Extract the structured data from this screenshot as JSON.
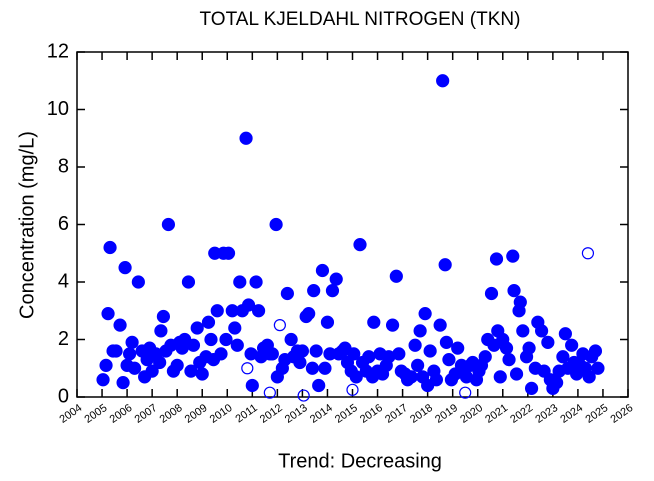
{
  "chart_data": {
    "type": "scatter",
    "title": "TOTAL KJELDAHL NITROGEN (TKN)",
    "y_label": "Concentration (mg/L)",
    "x_label": "Trend: Decreasing",
    "xlim": [
      2004,
      2026
    ],
    "xticks": [
      2004,
      2005,
      2006,
      2007,
      2008,
      2009,
      2010,
      2011,
      2012,
      2013,
      2014,
      2015,
      2016,
      2017,
      2018,
      2019,
      2020,
      2021,
      2022,
      2023,
      2024,
      2025,
      2026
    ],
    "ylim": [
      0,
      12
    ],
    "yticks": [
      0,
      2,
      4,
      6,
      8,
      10,
      12
    ],
    "grid": false,
    "series": [
      {
        "color": "#0000ff",
        "marker": "filled",
        "x": [
          2005.04,
          2005.16,
          2005.24,
          2005.32,
          2005.44,
          2005.56,
          2005.72,
          2005.84,
          2005.92,
          2006.0,
          2006.1,
          2006.2,
          2006.3,
          2006.45,
          2006.6,
          2006.7,
          2006.8,
          2006.9,
          2007.0,
          2007.15,
          2007.3,
          2007.35,
          2007.45,
          2007.55,
          2007.65,
          2007.75,
          2007.85,
          2008.0,
          2008.1,
          2008.2,
          2008.3,
          2008.45,
          2008.55,
          2008.65,
          2008.8,
          2008.9,
          2009.0,
          2009.15,
          2009.25,
          2009.35,
          2009.45,
          2009.5,
          2009.6,
          2009.75,
          2009.85,
          2009.95,
          2010.05,
          2010.2,
          2010.3,
          2010.4,
          2010.5,
          2010.6,
          2010.75,
          2010.85,
          2010.95,
          2011.0,
          2011.15,
          2011.25,
          2011.35,
          2011.45,
          2011.6,
          2011.7,
          2011.8,
          2011.95,
          2012.0,
          2012.2,
          2012.3,
          2012.4,
          2012.55,
          2012.65,
          2012.8,
          2012.9,
          2013.0,
          2013.15,
          2013.25,
          2013.4,
          2013.45,
          2013.55,
          2013.65,
          2013.8,
          2013.9,
          2014.0,
          2014.1,
          2014.2,
          2014.35,
          2014.45,
          2014.6,
          2014.7,
          2014.8,
          2014.95,
          2015.05,
          2015.15,
          2015.3,
          2015.4,
          2015.55,
          2015.65,
          2015.8,
          2015.85,
          2016.0,
          2016.1,
          2016.2,
          2016.35,
          2016.45,
          2016.6,
          2016.75,
          2016.85,
          2016.95,
          2017.1,
          2017.2,
          2017.35,
          2017.5,
          2017.6,
          2017.7,
          2017.8,
          2017.9,
          2018.0,
          2018.1,
          2018.25,
          2018.35,
          2018.5,
          2018.6,
          2018.7,
          2018.75,
          2018.85,
          2018.95,
          2019.1,
          2019.2,
          2019.35,
          2019.45,
          2019.55,
          2019.7,
          2019.8,
          2019.95,
          2020.05,
          2020.15,
          2020.3,
          2020.4,
          2020.55,
          2020.65,
          2020.75,
          2020.8,
          2020.9,
          2021.0,
          2021.15,
          2021.25,
          2021.4,
          2021.45,
          2021.55,
          2021.65,
          2021.7,
          2021.8,
          2021.95,
          2022.05,
          2022.15,
          2022.3,
          2022.4,
          2022.55,
          2022.65,
          2022.8,
          2022.9,
          2023.0,
          2023.15,
          2023.25,
          2023.4,
          2023.5,
          2023.6,
          2023.75,
          2023.85,
          2023.95,
          2024.1,
          2024.2,
          2024.3,
          2024.45,
          2024.55,
          2024.7,
          2024.8
        ],
        "values": [
          0.6,
          1.1,
          2.9,
          5.2,
          1.6,
          1.6,
          2.5,
          0.5,
          4.5,
          1.1,
          1.5,
          1.9,
          1.0,
          4.0,
          1.6,
          0.7,
          1.3,
          1.7,
          0.9,
          1.5,
          1.2,
          2.3,
          2.8,
          1.6,
          6.0,
          1.8,
          0.9,
          1.1,
          1.9,
          1.7,
          2.0,
          4.0,
          0.9,
          1.8,
          2.4,
          1.2,
          0.8,
          1.4,
          2.6,
          2.0,
          1.3,
          5.0,
          3.0,
          1.5,
          5.0,
          2.0,
          5.0,
          3.0,
          2.4,
          1.8,
          4.0,
          3.0,
          9.0,
          3.2,
          1.5,
          0.4,
          4.0,
          3.0,
          1.4,
          1.7,
          1.8,
          1.5,
          1.5,
          6.0,
          0.7,
          1.0,
          1.3,
          3.6,
          2.0,
          1.4,
          1.6,
          1.2,
          1.6,
          2.8,
          2.9,
          1.0,
          3.7,
          1.6,
          0.4,
          4.4,
          1.0,
          2.6,
          1.5,
          3.7,
          4.1,
          1.5,
          1.6,
          1.7,
          1.2,
          0.9,
          1.5,
          0.7,
          5.3,
          1.2,
          0.9,
          1.4,
          0.7,
          2.6,
          0.9,
          1.5,
          0.8,
          1.1,
          1.4,
          2.5,
          4.2,
          1.5,
          0.9,
          0.8,
          0.6,
          0.7,
          1.8,
          1.1,
          2.3,
          0.7,
          2.9,
          0.4,
          1.6,
          0.9,
          0.6,
          2.5,
          11.0,
          4.6,
          1.9,
          1.3,
          0.6,
          0.8,
          1.7,
          1.1,
          0.9,
          0.7,
          1.1,
          1.2,
          0.6,
          0.9,
          1.1,
          1.4,
          2.0,
          3.6,
          1.8,
          4.8,
          2.3,
          0.7,
          2.0,
          1.7,
          1.3,
          4.9,
          3.7,
          0.8,
          3.0,
          3.3,
          2.3,
          1.4,
          1.7,
          0.3,
          1.0,
          2.6,
          2.3,
          0.9,
          1.9,
          0.6,
          0.3,
          0.5,
          0.9,
          1.4,
          2.2,
          1.0,
          1.8,
          1.2,
          0.8,
          1.1,
          1.5,
          1.0,
          0.7,
          1.4,
          1.6,
          1.0
        ]
      },
      {
        "color": "#0000ff",
        "marker": "open",
        "x": [
          2010.8,
          2011.7,
          2012.1,
          2013.05,
          2015.0,
          2019.5,
          2024.4
        ],
        "values": [
          1.0,
          0.15,
          2.5,
          0.05,
          0.25,
          0.15,
          5.0
        ]
      }
    ]
  }
}
